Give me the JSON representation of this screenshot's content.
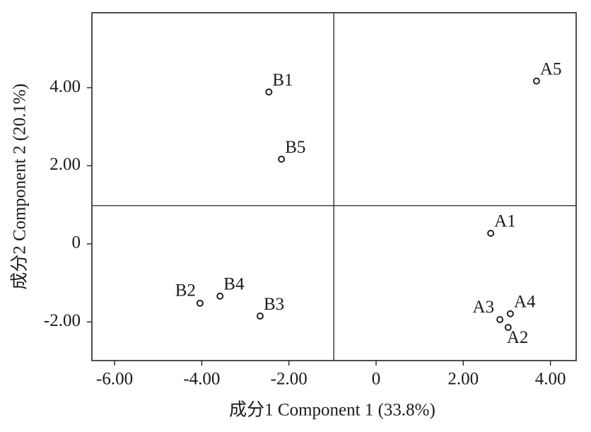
{
  "chart_data": {
    "type": "scatter",
    "x_label": "成分1  Component 1 (33.8%)",
    "y_label": "成分2  Component 2 (20.1%)",
    "labels": [
      "B1",
      "B5",
      "A5",
      "A1",
      "B2",
      "B4",
      "B3",
      "A3",
      "A4",
      "A2"
    ],
    "x": [
      -2.46,
      -2.17,
      3.68,
      2.63,
      -4.04,
      -3.58,
      -2.66,
      2.84,
      3.08,
      3.03
    ],
    "y": [
      3.89,
      2.17,
      4.17,
      0.27,
      -1.52,
      -1.34,
      -1.85,
      -1.94,
      -1.79,
      -2.14
    ],
    "xlim": [
      -6.52,
      4.59
    ],
    "ylim": [
      -2.99,
      5.92
    ],
    "xticks": [
      {
        "value": -6,
        "label": "-6.00"
      },
      {
        "value": -4,
        "label": "-4.00"
      },
      {
        "value": -2,
        "label": "-2.00"
      },
      0,
      {
        "value": 2,
        "label": "2.00"
      },
      {
        "value": 4,
        "label": "4.00"
      }
    ],
    "yticks": [
      {
        "value": -2,
        "label": "-2.00"
      },
      0,
      {
        "value": 2,
        "label": "2.00"
      },
      {
        "value": 4,
        "label": "4.00"
      }
    ],
    "reference_lines": {
      "x": -0.97,
      "y": 0.98
    }
  }
}
